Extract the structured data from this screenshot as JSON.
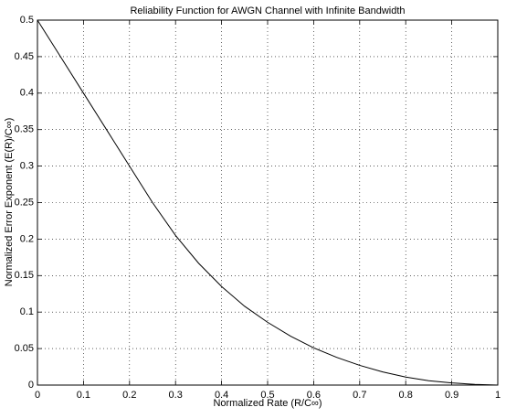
{
  "chart_data": {
    "type": "line",
    "title": "Reliability Function for AWGN Channel with Infinite Bandwidth",
    "x_label": "Normalized Rate (R/C∞)",
    "y_label": "Normalized Error Exponent (E(R)/C∞)",
    "x": [
      0,
      0.05,
      0.1,
      0.15,
      0.2,
      0.25,
      0.3,
      0.35,
      0.4,
      0.45,
      0.5,
      0.55,
      0.6,
      0.65,
      0.7,
      0.75,
      0.8,
      0.85,
      0.9,
      0.95,
      1
    ],
    "values": [
      0.5,
      0.45,
      0.4,
      0.35,
      0.3,
      0.25,
      0.205,
      0.167,
      0.135,
      0.108,
      0.086,
      0.067,
      0.051,
      0.038,
      0.027,
      0.018,
      0.011,
      0.006,
      0.003,
      0.001,
      0
    ],
    "color": "#000000",
    "xlim": [
      0,
      1
    ],
    "ylim": [
      0,
      0.5
    ],
    "xticks": [
      0,
      0.1,
      0.2,
      0.3,
      0.4,
      0.5,
      0.6,
      0.7,
      0.8,
      0.9,
      1
    ],
    "yticks": [
      0,
      0.05,
      0.1,
      0.15,
      0.2,
      0.25,
      0.3,
      0.35,
      0.4,
      0.45,
      0.5
    ],
    "grid": true
  }
}
